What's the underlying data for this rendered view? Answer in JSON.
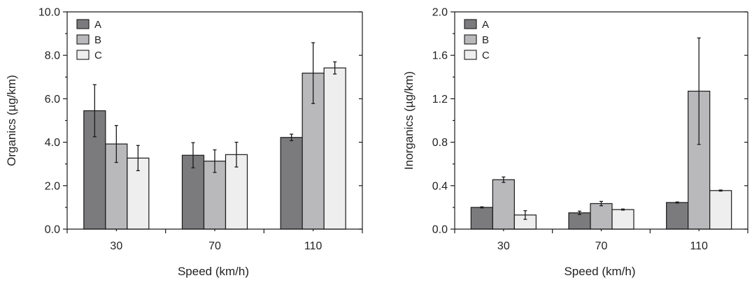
{
  "chart_data": [
    {
      "type": "bar",
      "categories": [
        "30",
        "70",
        "110"
      ],
      "series": [
        {
          "name": "A",
          "values": [
            5.45,
            3.4,
            4.22
          ],
          "errors": [
            1.2,
            0.58,
            0.15
          ],
          "color": "#7b7b7d"
        },
        {
          "name": "B",
          "values": [
            3.92,
            3.13,
            7.18
          ],
          "errors": [
            0.85,
            0.52,
            1.4
          ],
          "color": "#b9b9bb"
        },
        {
          "name": "C",
          "values": [
            3.27,
            3.43,
            7.42
          ],
          "errors": [
            0.58,
            0.57,
            0.28
          ],
          "color": "#eeeeee"
        }
      ],
      "xlabel": "Speed (km/h)",
      "ylabel": "Organics (µg/km)",
      "ylim": [
        0,
        10
      ],
      "yticks": [
        "0.0",
        "2.0",
        "4.0",
        "6.0",
        "8.0",
        "10.0"
      ],
      "legend": "top-left",
      "grid": false
    },
    {
      "type": "bar",
      "categories": [
        "30",
        "70",
        "110"
      ],
      "series": [
        {
          "name": "A",
          "values": [
            0.2,
            0.15,
            0.245
          ],
          "errors": [
            0.005,
            0.015,
            0.005
          ],
          "color": "#7b7b7d"
        },
        {
          "name": "B",
          "values": [
            0.455,
            0.235,
            1.27
          ],
          "errors": [
            0.025,
            0.02,
            0.49
          ],
          "color": "#b9b9bb"
        },
        {
          "name": "C",
          "values": [
            0.13,
            0.18,
            0.355
          ],
          "errors": [
            0.04,
            0.005,
            0.005
          ],
          "color": "#eeeeee"
        }
      ],
      "xlabel": "Speed (km/h)",
      "ylabel": "Inorganics (µg/km)",
      "ylim": [
        0,
        2.0
      ],
      "yticks": [
        "0.0",
        "0.4",
        "0.8",
        "1.2",
        "1.6",
        "2.0"
      ],
      "legend": "top-left",
      "grid": false
    }
  ]
}
